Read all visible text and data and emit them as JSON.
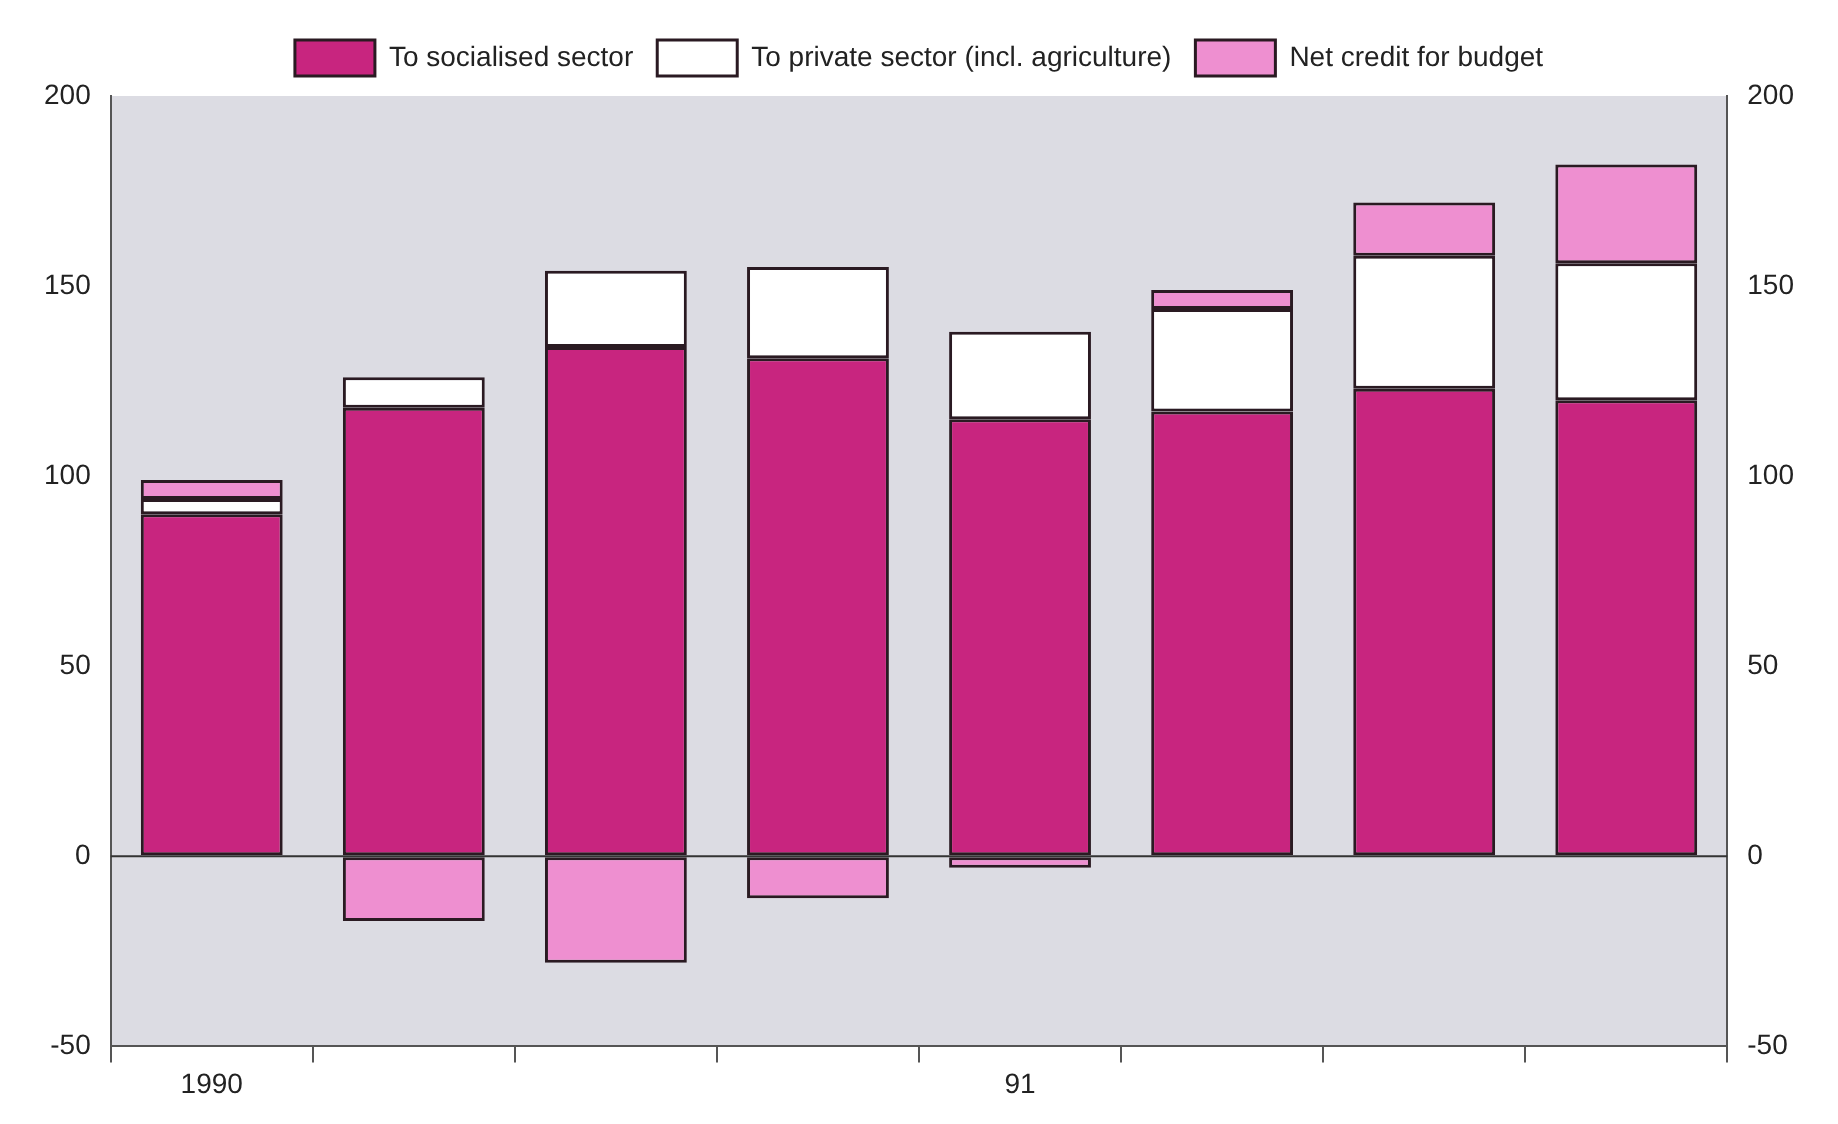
{
  "chart_data": {
    "type": "bar",
    "stacked": true,
    "categories": [
      "1990",
      null,
      null,
      null,
      "91",
      null,
      null,
      null
    ],
    "series": [
      {
        "name": "To socialised sector",
        "color": "#c8257f",
        "values": [
          90,
          118,
          134,
          131,
          115,
          117,
          123,
          120
        ]
      },
      {
        "name": "To private sector (incl. agriculture)",
        "color": "#ffffff",
        "values": [
          4,
          8,
          20,
          24,
          23,
          27,
          35,
          36
        ]
      },
      {
        "name": "Net credit for budget",
        "color": "#ee8fd0",
        "values": [
          5,
          -17,
          -28,
          -11,
          -3,
          5,
          14,
          26
        ]
      }
    ],
    "ylim": [
      -50,
      200
    ],
    "yticks": [
      -50,
      0,
      50,
      100,
      150,
      200
    ],
    "y2lim": [
      -50,
      200
    ],
    "y2ticks": [
      -50,
      0,
      50,
      100,
      150,
      200
    ],
    "ref_lines": [
      {
        "axis": "y",
        "value": 0,
        "color": "#333333"
      }
    ],
    "grid": false,
    "legend": "top"
  }
}
